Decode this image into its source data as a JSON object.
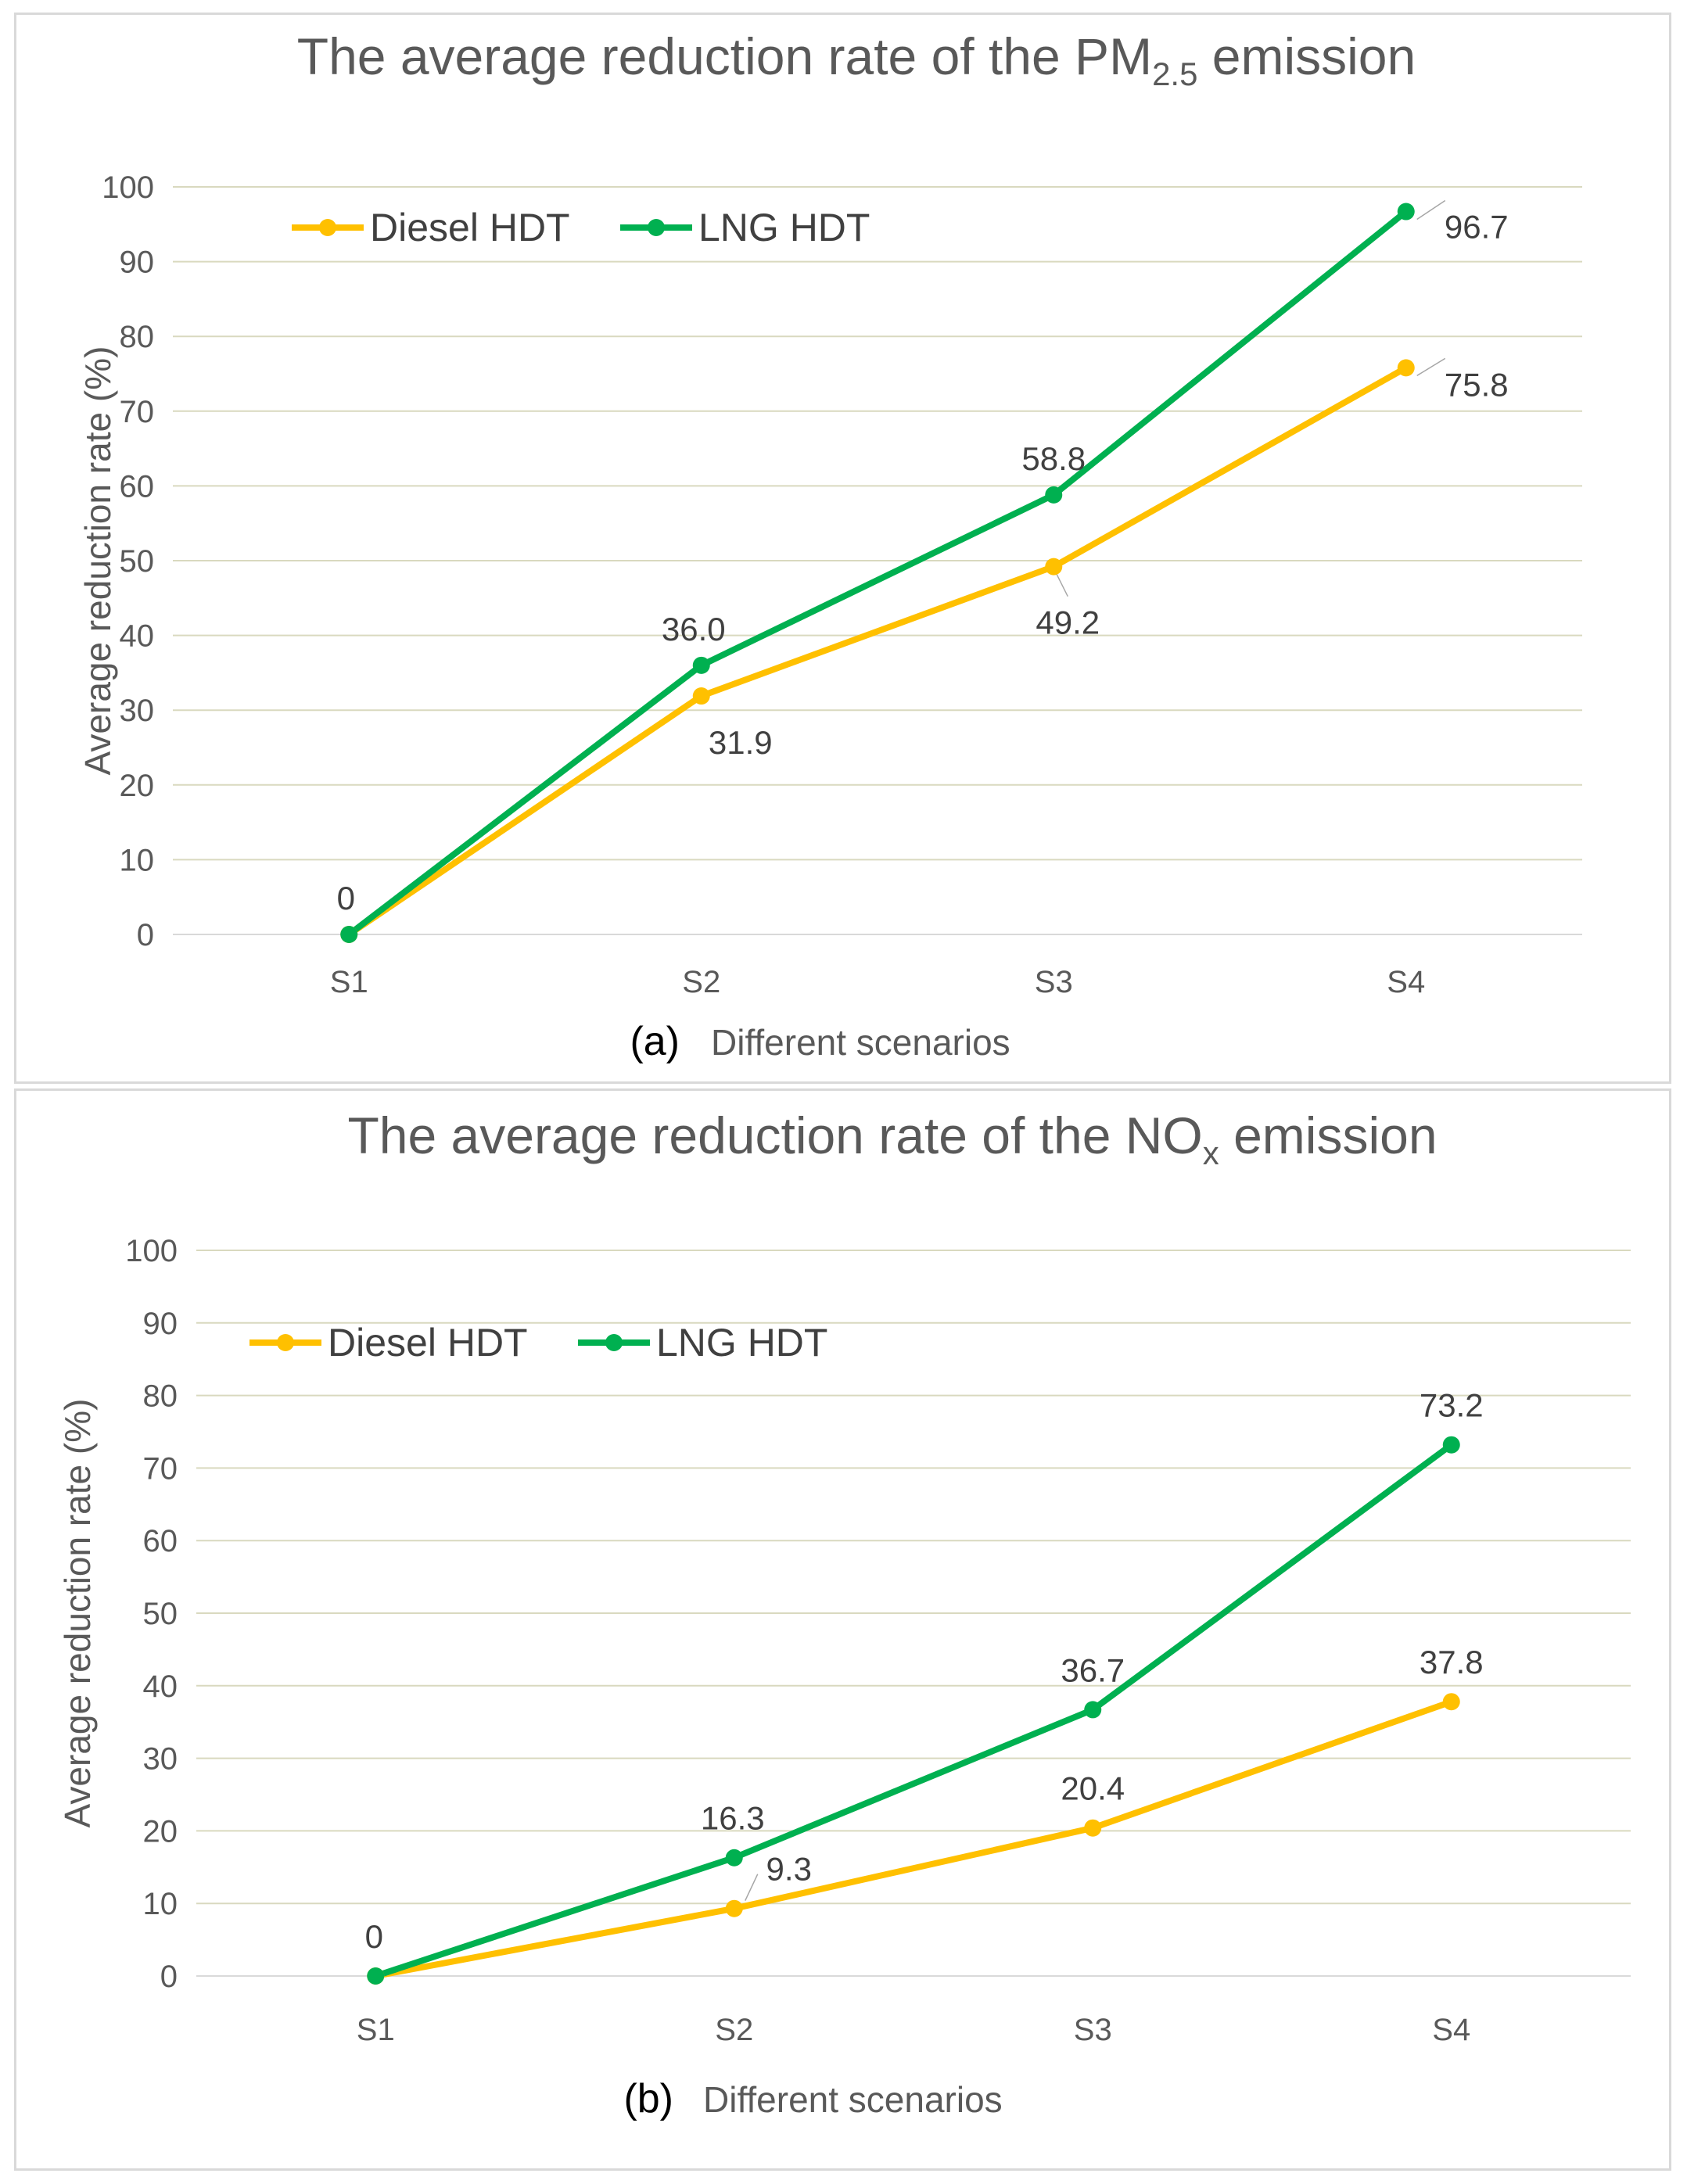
{
  "colors": {
    "diesel": "#ffc000",
    "lng": "#00b050"
  },
  "chart_data": [
    {
      "type": "line",
      "panel_letter": "(a)",
      "title": "The average reduction rate of the PM",
      "title_subscript": "2.5",
      "title_suffix": " emission",
      "xlabel": "Different scenarios",
      "ylabel": "Average reduction rate (%)",
      "categories": [
        "S1",
        "S2",
        "S3",
        "S4"
      ],
      "ylim": [
        0,
        100
      ],
      "yticks": [
        "0",
        "10",
        "20",
        "30",
        "40",
        "50",
        "60",
        "70",
        "80",
        "90",
        "100"
      ],
      "legend_position": "top-left",
      "series": [
        {
          "name": "Diesel HDT",
          "values": [
            0,
            31.9,
            49.2,
            75.8
          ],
          "labels": [
            "",
            "31.9",
            "49.2",
            "75.8"
          ]
        },
        {
          "name": "LNG HDT",
          "values": [
            0,
            36.0,
            58.8,
            96.7
          ],
          "labels": [
            "0",
            "36.0",
            "58.8",
            "96.7"
          ]
        }
      ]
    },
    {
      "type": "line",
      "panel_letter": "(b)",
      "title": "The average reduction rate of the NO",
      "title_subscript": "x",
      "title_suffix": " emission",
      "xlabel": "Different scenarios",
      "ylabel": "Average reduction rate (%)",
      "categories": [
        "S1",
        "S2",
        "S3",
        "S4"
      ],
      "ylim": [
        0,
        100
      ],
      "yticks": [
        "0",
        "10",
        "20",
        "30",
        "40",
        "50",
        "60",
        "70",
        "80",
        "90",
        "100"
      ],
      "legend_position": "top-left",
      "series": [
        {
          "name": "Diesel HDT",
          "values": [
            0,
            9.3,
            20.4,
            37.8
          ],
          "labels": [
            "",
            "9.3",
            "20.4",
            "37.8"
          ]
        },
        {
          "name": "LNG HDT",
          "values": [
            0,
            16.3,
            36.7,
            73.2
          ],
          "labels": [
            "0",
            "16.3",
            "36.7",
            "73.2"
          ]
        }
      ]
    }
  ]
}
